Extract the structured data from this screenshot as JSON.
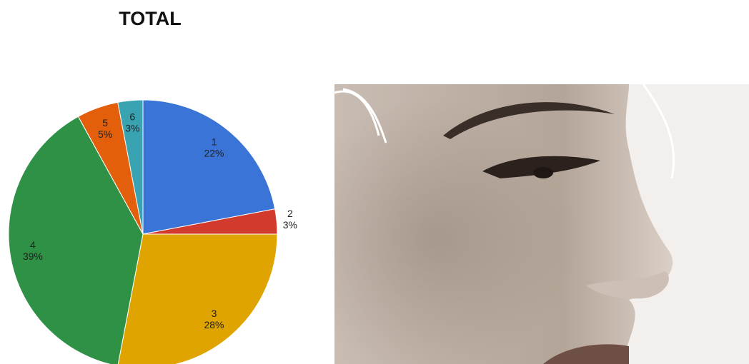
{
  "chart_data": {
    "type": "pie",
    "title": "TOTAL",
    "categories": [
      "1",
      "2",
      "3",
      "4",
      "5",
      "6"
    ],
    "values": [
      22,
      3,
      28,
      39,
      5,
      3
    ],
    "value_labels": [
      "22%",
      "3%",
      "28%",
      "39%",
      "5%",
      "3%"
    ],
    "colors": [
      "#3a74d7",
      "#d13a2c",
      "#e0a400",
      "#2e9145",
      "#e35f0b",
      "#3aa3b1"
    ]
  }
}
